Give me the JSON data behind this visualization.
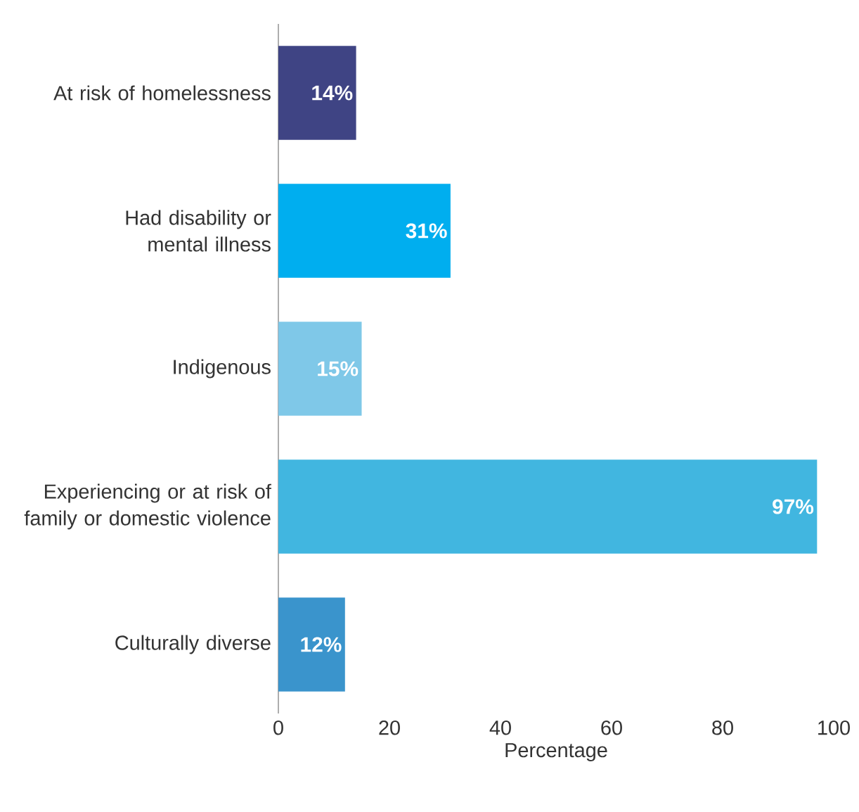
{
  "chart_data": {
    "type": "bar",
    "orientation": "horizontal",
    "xlabel": "Percentage",
    "categories": [
      "At risk of homelessness",
      "Had disability or mental illness",
      "Indigenous",
      "Experiencing or at risk of family or domestic violence",
      "Culturally diverse"
    ],
    "values": [
      14,
      31,
      15,
      97,
      12
    ],
    "colors": [
      "#3f4484",
      "#00aeef",
      "#7fc8e8",
      "#41b6e0",
      "#3a94cc"
    ],
    "data_labels": true,
    "value_labels": [
      "14%",
      "31%",
      "15%",
      "97%",
      "12%"
    ],
    "xlim": [
      0,
      100
    ],
    "xticks": [
      0,
      20,
      40,
      60,
      80,
      100
    ]
  }
}
